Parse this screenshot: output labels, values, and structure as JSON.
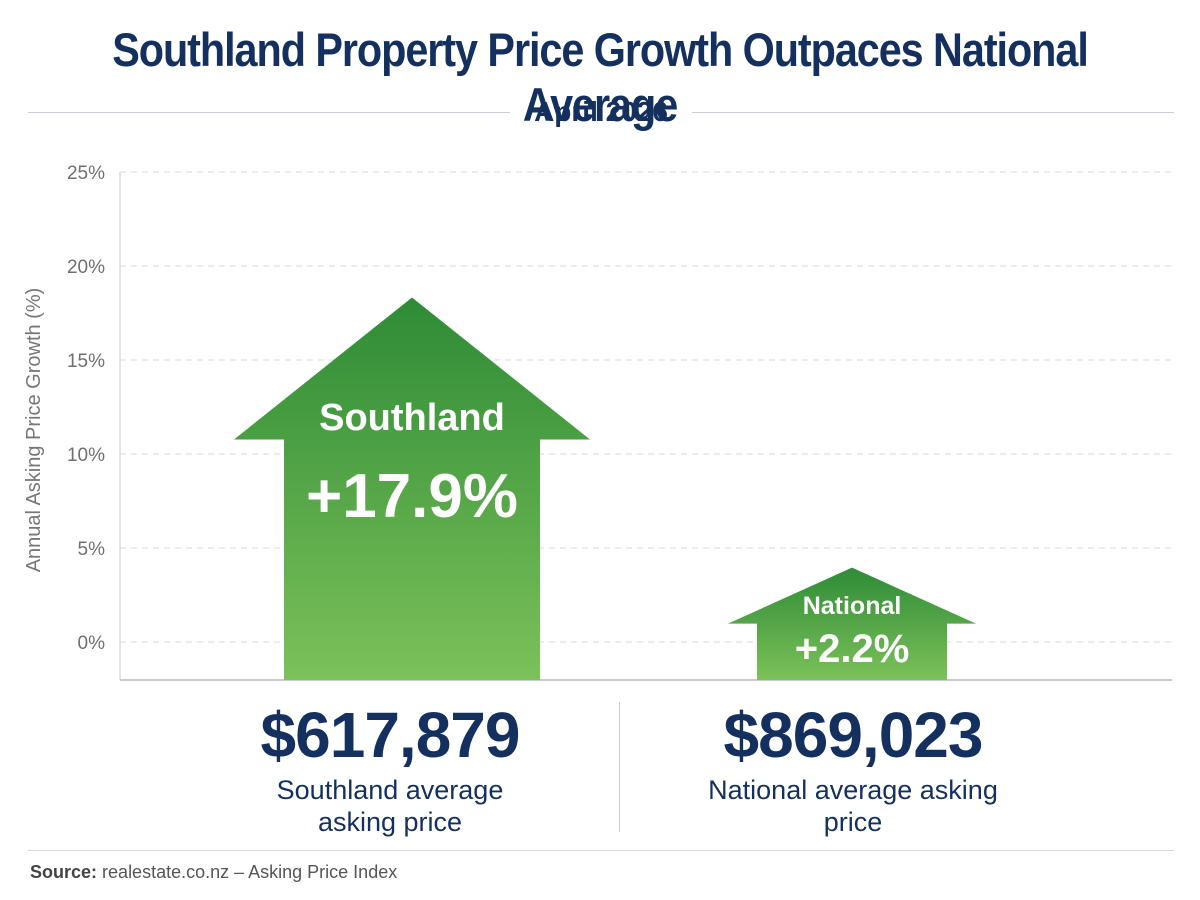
{
  "chart_data": {
    "type": "bar",
    "title": "Southland Property Price Growth Outpaces National Average",
    "subtitle": "April 2026",
    "ylabel": "Annual Asking Price Growth (%)",
    "ylim": [
      0,
      25
    ],
    "yticks": [
      "0%",
      "5%",
      "10%",
      "15%",
      "20%",
      "25%"
    ],
    "grid": true,
    "categories": [
      "Southland",
      "National"
    ],
    "values": [
      17.9,
      2.2
    ],
    "value_labels": [
      "+17.9%",
      "+2.2%"
    ],
    "colors": {
      "bar_top": "#2e8b36",
      "bar_bottom": "#7cc15a",
      "title": "#14305e",
      "grid": "#dadada"
    }
  },
  "prices": [
    {
      "value": "$617,879",
      "caption": "Southland average asking price"
    },
    {
      "value": "$869,023",
      "caption": "National average asking price"
    }
  ],
  "source": {
    "label": "Source:",
    "text": "realestate.co.nz – Asking Price Index"
  }
}
